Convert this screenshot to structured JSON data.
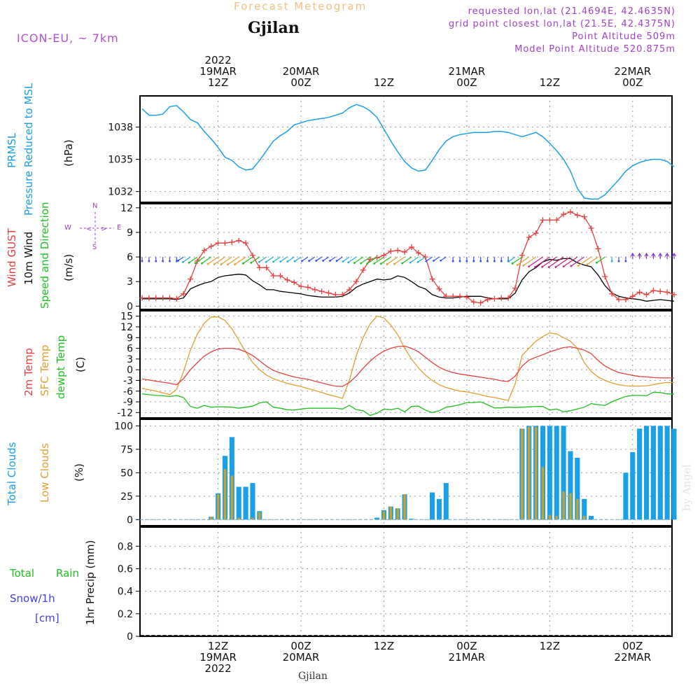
{
  "header": {
    "title": "Forecast Meteogram",
    "location": "Gjilan",
    "model": "ICON-EU, ~ 7km",
    "requested": "requested lon,lat (21.4694E, 42.4635N)",
    "gridpoint": "grid point closest lon,lat (21.5E, 42.4375N)",
    "point_altitude": "Point Altitude 509m",
    "model_altitude": "Model Point Altitude 520.875m",
    "footer_location": "Gjilan",
    "watermark": "by Angel"
  },
  "time_axis": {
    "top_labels": [
      {
        "l1": "2022",
        "l2": "19MAR",
        "l3": "12Z"
      },
      {
        "l1": "",
        "l2": "20MAR",
        "l3": "00Z"
      },
      {
        "l1": "",
        "l2": "",
        "l3": "12Z"
      },
      {
        "l1": "",
        "l2": "21MAR",
        "l3": "00Z"
      },
      {
        "l1": "",
        "l2": "",
        "l3": "12Z"
      },
      {
        "l1": "",
        "l2": "22MAR",
        "l3": "00Z"
      }
    ],
    "bottom_labels": [
      {
        "l1": "12Z",
        "l2": "19MAR",
        "l3": "2022"
      },
      {
        "l1": "00Z",
        "l2": "20MAR",
        "l3": ""
      },
      {
        "l1": "12Z",
        "l2": "",
        "l3": ""
      },
      {
        "l1": "00Z",
        "l2": "21MAR",
        "l3": ""
      },
      {
        "l1": "12Z",
        "l2": "",
        "l3": ""
      },
      {
        "l1": "00Z",
        "l2": "22MAR",
        "l3": ""
      }
    ]
  },
  "panel_labels": {
    "pressure": {
      "a": "PRMSL",
      "b": "Pressure Reduced to MSL",
      "unit": "(hPa)"
    },
    "wind": {
      "a": "Wind GUST",
      "b": "10m Wind",
      "c": "Speed and Direction",
      "unit": "(m/s)",
      "compass_ns": "N",
      "compass_s": "S",
      "compass_w": "W",
      "compass_e": "E"
    },
    "temp": {
      "a": "2m Temp",
      "b": "SFC Temp",
      "c": "dewpt Temp",
      "unit": "(C)"
    },
    "clouds": {
      "a": "Total Clouds",
      "b": "Low Clouds",
      "unit": "(%)"
    },
    "precip": {
      "a": "Total",
      "a2": "Rain",
      "b": "Snow/1h",
      "c": "[cm]",
      "unit": "1hr Precip (mm)"
    }
  },
  "colors": {
    "pressure": "#1aa0e8",
    "gust": "#e84040",
    "wind": "#000000",
    "t2m": "#e84040",
    "tsfc": "#e0a030",
    "dewpt": "#20c020",
    "total_clouds": "#1aa0e8",
    "low_clouds": "#c8a030",
    "rain": "#20c020",
    "snow": "#4040e8",
    "grid": "#999999"
  },
  "chart_data": [
    {
      "type": "line",
      "name": "pressure",
      "x_hours": [
        0,
        1,
        2,
        3,
        4,
        5,
        6,
        7,
        8,
        9,
        10,
        11,
        12,
        13,
        14,
        15,
        16,
        17,
        18,
        19,
        20,
        21,
        22,
        23,
        24,
        25,
        26,
        27,
        28,
        29,
        30,
        31,
        32,
        33,
        34,
        35,
        36,
        37,
        38,
        39,
        40,
        41,
        42,
        43,
        44,
        45,
        46,
        47,
        48,
        49,
        50,
        51,
        52,
        53,
        54,
        55,
        56,
        57,
        58,
        59,
        60,
        61,
        62,
        63,
        64,
        65,
        66,
        67,
        68,
        69,
        70,
        71,
        72,
        73,
        74,
        75,
        76,
        77
      ],
      "values": [
        1039.7,
        1039.1,
        1039.1,
        1039.2,
        1039.9,
        1040.0,
        1039.4,
        1038.7,
        1038.4,
        1037.6,
        1036.9,
        1036.1,
        1035.2,
        1034.9,
        1034.3,
        1034.0,
        1034.1,
        1034.9,
        1035.8,
        1036.7,
        1037.2,
        1037.6,
        1038.2,
        1038.4,
        1038.6,
        1038.7,
        1038.8,
        1038.9,
        1039.1,
        1039.3,
        1039.8,
        1040.1,
        1039.9,
        1039.5,
        1038.9,
        1037.8,
        1036.7,
        1035.7,
        1034.8,
        1034.2,
        1033.9,
        1034.0,
        1034.9,
        1035.9,
        1036.7,
        1037.1,
        1037.3,
        1037.4,
        1037.5,
        1037.5,
        1037.5,
        1037.6,
        1037.6,
        1037.5,
        1037.3,
        1037.1,
        1037.3,
        1037.5,
        1037.1,
        1036.5,
        1035.8,
        1035.0,
        1033.9,
        1032.3,
        1031.4,
        1031.3,
        1031.3,
        1031.7,
        1032.4,
        1033.1,
        1033.9,
        1034.4,
        1034.7,
        1034.9,
        1035.0,
        1035.0,
        1034.8,
        1034.3
      ],
      "ylabel": "(hPa)",
      "yticks": [
        1032,
        1035,
        1038
      ],
      "ylim": [
        1031,
        1040.9
      ]
    },
    {
      "type": "line",
      "name": "wind",
      "x_hours": [
        0,
        1,
        2,
        3,
        4,
        5,
        6,
        7,
        8,
        9,
        10,
        11,
        12,
        13,
        14,
        15,
        16,
        17,
        18,
        19,
        20,
        21,
        22,
        23,
        24,
        25,
        26,
        27,
        28,
        29,
        30,
        31,
        32,
        33,
        34,
        35,
        36,
        37,
        38,
        39,
        40,
        41,
        42,
        43,
        44,
        45,
        46,
        47,
        48,
        49,
        50,
        51,
        52,
        53,
        54,
        55,
        56,
        57,
        58,
        59,
        60,
        61,
        62,
        63,
        64,
        65,
        66,
        67,
        68,
        69,
        70,
        71,
        72,
        73,
        74,
        75,
        76,
        77
      ],
      "gust": [
        1.0,
        1.0,
        1.0,
        1.0,
        1.0,
        0.9,
        1.5,
        3.3,
        5.5,
        6.8,
        7.3,
        7.7,
        7.7,
        7.8,
        8.0,
        7.7,
        6.2,
        4.7,
        4.7,
        3.7,
        3.7,
        3.2,
        2.9,
        2.4,
        2.3,
        2.0,
        1.8,
        1.6,
        1.4,
        1.4,
        2.0,
        3.0,
        4.4,
        5.7,
        5.9,
        6.2,
        6.7,
        6.8,
        6.6,
        7.2,
        6.5,
        6.0,
        3.3,
        2.1,
        1.2,
        1.2,
        1.2,
        1.1,
        0.5,
        0.4,
        0.8,
        0.9,
        1.0,
        1.0,
        2.2,
        6.2,
        8.4,
        8.9,
        10.5,
        10.5,
        10.5,
        11.2,
        11.5,
        11.1,
        10.9,
        9.5,
        7.0,
        3.6,
        1.5,
        0.8,
        0.8,
        1.2,
        1.7,
        1.4,
        1.9,
        1.8,
        1.7,
        1.4
      ],
      "wind10m": [
        0.9,
        0.9,
        0.9,
        0.9,
        0.9,
        0.8,
        1.0,
        2.1,
        2.5,
        2.8,
        3.0,
        3.5,
        3.7,
        3.8,
        3.9,
        3.8,
        3.1,
        2.6,
        2.0,
        2.0,
        1.8,
        1.7,
        1.6,
        1.5,
        1.3,
        1.2,
        1.1,
        1.1,
        1.1,
        1.2,
        1.6,
        2.3,
        2.7,
        3.0,
        3.3,
        3.2,
        3.3,
        3.7,
        3.5,
        3.0,
        2.4,
        2.1,
        1.4,
        1.1,
        1.0,
        1.0,
        1.1,
        1.2,
        1.2,
        1.2,
        1.0,
        0.9,
        0.9,
        0.9,
        1.6,
        3.2,
        4.2,
        4.7,
        5.4,
        5.7,
        5.6,
        5.8,
        5.8,
        5.3,
        5.0,
        4.8,
        3.8,
        2.5,
        1.6,
        1.2,
        1.0,
        0.9,
        0.8,
        0.6,
        0.7,
        0.8,
        0.7,
        0.6
      ],
      "ylabel": "(m/s)",
      "yticks": [
        0,
        3,
        6,
        9,
        12
      ],
      "ylim": [
        -0.4,
        12.5
      ]
    },
    {
      "type": "line",
      "name": "temperature",
      "x_hours": [
        0,
        1,
        2,
        3,
        4,
        5,
        6,
        7,
        8,
        9,
        10,
        11,
        12,
        13,
        14,
        15,
        16,
        17,
        18,
        19,
        20,
        21,
        22,
        23,
        24,
        25,
        26,
        27,
        28,
        29,
        30,
        31,
        32,
        33,
        34,
        35,
        36,
        37,
        38,
        39,
        40,
        41,
        42,
        43,
        44,
        45,
        46,
        47,
        48,
        49,
        50,
        51,
        52,
        53,
        54,
        55,
        56,
        57,
        58,
        59,
        60,
        61,
        62,
        63,
        64,
        65,
        66,
        67,
        68,
        69,
        70,
        71,
        72,
        73,
        74,
        75,
        76,
        77
      ],
      "t2m": [
        -2.6,
        -2.9,
        -3.2,
        -3.5,
        -3.8,
        -4.2,
        -2.5,
        0.0,
        2.0,
        3.8,
        5.0,
        5.8,
        6.0,
        6.0,
        5.7,
        5.0,
        4.0,
        2.5,
        1.0,
        -0.2,
        -0.9,
        -1.5,
        -2.0,
        -2.4,
        -2.7,
        -3.2,
        -3.7,
        -4.2,
        -4.6,
        -4.7,
        -3.6,
        -1.8,
        0.4,
        2.4,
        4.0,
        5.2,
        6.0,
        6.5,
        6.6,
        6.0,
        5.0,
        3.5,
        2.0,
        0.7,
        -0.2,
        -0.8,
        -1.2,
        -1.5,
        -1.8,
        -2.1,
        -2.4,
        -2.7,
        -3.1,
        -3.3,
        -1.8,
        1.0,
        2.7,
        3.5,
        4.2,
        5.0,
        5.6,
        6.2,
        6.4,
        6.0,
        5.5,
        4.5,
        2.6,
        1.0,
        0.0,
        -0.8,
        -1.2,
        -1.6,
        -1.9,
        -2.0,
        -2.2,
        -2.3,
        -2.3,
        -2.3
      ],
      "tsfc": [
        -5.2,
        -5.6,
        -6.0,
        -6.5,
        -7.0,
        -5.5,
        -0.5,
        5.5,
        10.0,
        13.0,
        14.8,
        14.8,
        13.8,
        11.5,
        8.2,
        5.0,
        2.0,
        0.0,
        -1.5,
        -2.5,
        -3.2,
        -3.8,
        -4.3,
        -4.7,
        -5.3,
        -5.8,
        -6.4,
        -7.0,
        -7.5,
        -8.0,
        -3.0,
        4.0,
        9.0,
        12.8,
        15.0,
        14.5,
        12.5,
        9.8,
        6.0,
        3.0,
        0.5,
        -1.5,
        -3.0,
        -4.2,
        -5.0,
        -5.5,
        -6.0,
        -6.2,
        -6.6,
        -7.0,
        -7.5,
        -7.8,
        -8.2,
        -8.6,
        -4.0,
        4.0,
        6.0,
        8.0,
        9.3,
        10.3,
        10.0,
        9.0,
        8.0,
        6.0,
        2.0,
        -0.5,
        -2.0,
        -3.0,
        -3.7,
        -4.2,
        -4.5,
        -4.6,
        -4.6,
        -4.5,
        -4.2,
        -3.8,
        -3.6,
        -3.6
      ],
      "dewpt": [
        -6.8,
        -7.0,
        -7.2,
        -7.3,
        -7.5,
        -7.2,
        -7.8,
        -10.3,
        -10.8,
        -10.0,
        -10.5,
        -10.4,
        -10.4,
        -10.5,
        -10.8,
        -10.5,
        -10.2,
        -9.3,
        -9.0,
        -10.5,
        -10.8,
        -11.2,
        -11.3,
        -11.0,
        -10.8,
        -10.8,
        -10.8,
        -10.8,
        -10.8,
        -11.0,
        -10.0,
        -11.2,
        -11.5,
        -12.8,
        -12.2,
        -11.0,
        -11.2,
        -10.8,
        -11.8,
        -10.3,
        -10.2,
        -11.3,
        -12.0,
        -11.5,
        -10.5,
        -10.2,
        -9.8,
        -9.2,
        -9.2,
        -9.0,
        -9.8,
        -10.7,
        -10.7,
        -10.5,
        -10.6,
        -10.5,
        -10.4,
        -10.3,
        -10.3,
        -11.3,
        -11.0,
        -11.8,
        -11.5,
        -11.0,
        -10.5,
        -9.5,
        -9.8,
        -10.0,
        -9.0,
        -8.2,
        -7.5,
        -7.2,
        -7.2,
        -7.3,
        -6.3,
        -6.4,
        -6.8,
        -6.8
      ],
      "ylabel": "(C)",
      "yticks": [
        -12,
        -9,
        -6,
        -3,
        0,
        3,
        6,
        9,
        12,
        15
      ],
      "ylim": [
        -13.5,
        16.5
      ]
    },
    {
      "type": "bar",
      "name": "clouds",
      "x_hours": [
        0,
        1,
        2,
        3,
        4,
        5,
        6,
        7,
        8,
        9,
        10,
        11,
        12,
        13,
        14,
        15,
        16,
        17,
        18,
        19,
        20,
        21,
        22,
        23,
        24,
        25,
        26,
        27,
        28,
        29,
        30,
        31,
        32,
        33,
        34,
        35,
        36,
        37,
        38,
        39,
        40,
        41,
        42,
        43,
        44,
        45,
        46,
        47,
        48,
        49,
        50,
        51,
        52,
        53,
        54,
        55,
        56,
        57,
        58,
        59,
        60,
        61,
        62,
        63,
        64,
        65,
        66,
        67,
        68,
        69,
        70,
        71,
        72,
        73,
        74,
        75,
        76,
        77
      ],
      "total": [
        0,
        0,
        0,
        0,
        0,
        0,
        0,
        0,
        0,
        0,
        3,
        28,
        68,
        88,
        35,
        35,
        39,
        9,
        0,
        0,
        0,
        0,
        0,
        0,
        0,
        0,
        0,
        0,
        0,
        0,
        0,
        0,
        0,
        0,
        2,
        10,
        14,
        12,
        27,
        1,
        0,
        0,
        29,
        22,
        39,
        0,
        0,
        0,
        0,
        0,
        0,
        0,
        0,
        0,
        0,
        97,
        100,
        100,
        100,
        100,
        100,
        100,
        73,
        66,
        22,
        4,
        0,
        0,
        0,
        0,
        50,
        72,
        97,
        100,
        100,
        100,
        100,
        97
      ],
      "low": [
        0,
        0,
        0,
        0,
        0,
        0,
        0,
        0,
        0,
        0,
        3,
        27,
        54,
        47,
        2,
        0,
        2,
        8,
        0,
        0,
        0,
        0,
        0,
        0,
        0,
        0,
        0,
        0,
        0,
        0,
        0,
        0,
        0,
        0,
        0,
        9,
        14,
        12,
        27,
        0,
        0,
        0,
        0,
        0,
        0,
        0,
        0,
        0,
        0,
        0,
        0,
        0,
        0,
        0,
        0,
        97,
        99,
        99,
        56,
        5,
        4,
        30,
        28,
        22,
        4,
        0,
        0,
        0,
        0,
        0,
        0,
        0,
        0,
        0,
        0,
        0,
        0,
        0
      ],
      "ylabel": "(%)",
      "yticks": [
        0,
        25,
        50,
        75,
        100
      ],
      "ylim": [
        -6.5,
        107
      ]
    },
    {
      "type": "bar",
      "name": "precip",
      "rain": [],
      "snow": [],
      "ylabel": "1hr Precip (mm)",
      "yticks": [
        0,
        0.2,
        0.4,
        0.6,
        0.8
      ],
      "ylim": [
        0,
        0.97
      ]
    }
  ]
}
